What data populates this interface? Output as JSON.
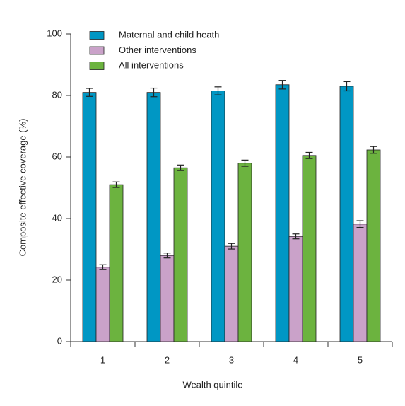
{
  "chart_data": {
    "type": "bar",
    "xlabel": "Wealth quintile",
    "ylabel": "Composite effective coverage (%)",
    "categories": [
      "1",
      "2",
      "3",
      "4",
      "5"
    ],
    "series": [
      {
        "name": "Maternal and child heath",
        "color": "#0097c4",
        "values": [
          81,
          81,
          81.5,
          83.5,
          83
        ],
        "errors": [
          1.3,
          1.4,
          1.3,
          1.4,
          1.5
        ]
      },
      {
        "name": "Other interventions",
        "color": "#caa2c9",
        "values": [
          24.2,
          28,
          31,
          34.2,
          38.2
        ],
        "errors": [
          0.8,
          0.8,
          0.9,
          0.8,
          1.1
        ]
      },
      {
        "name": "All interventions",
        "color": "#6cb33f",
        "values": [
          51,
          56.5,
          58,
          60.5,
          62.3
        ],
        "errors": [
          0.9,
          0.9,
          1,
          1,
          1.1
        ]
      }
    ],
    "ylim": [
      0,
      100
    ],
    "yticks": [
      0,
      20,
      40,
      60,
      80,
      100
    ]
  }
}
